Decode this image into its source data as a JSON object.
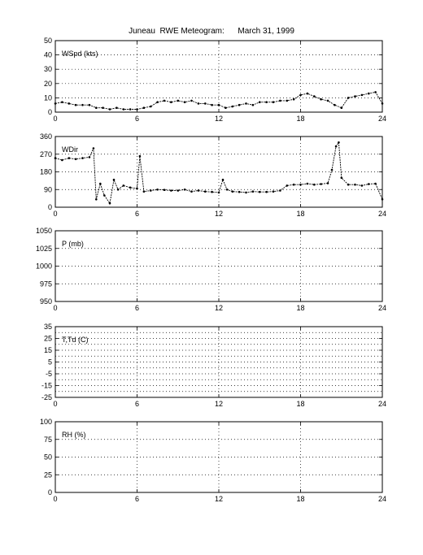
{
  "title": "Juneau  RWE Meteogram:      March 31, 1999",
  "chart_data": [
    {
      "type": "scatter",
      "label": "WSpd (kts)",
      "xlim": [
        0,
        24
      ],
      "xticks": [
        "0",
        "6",
        "12",
        "18",
        "24"
      ],
      "ylim": [
        0,
        50
      ],
      "yticks": [
        "0",
        "10",
        "20",
        "30",
        "40",
        "50"
      ],
      "grid": true,
      "series": [
        {
          "x": [
            0,
            0.5,
            1,
            1.5,
            2,
            2.5,
            3,
            3.5,
            4,
            4.5,
            5,
            5.5,
            6,
            6.5,
            7,
            7.5,
            8,
            8.5,
            9,
            9.5,
            10,
            10.5,
            11,
            11.5,
            12,
            12.5,
            13,
            13.5,
            14,
            14.5,
            15,
            15.5,
            16,
            16.5,
            17,
            17.5,
            18,
            18.5,
            19,
            19.5,
            20,
            20.5,
            21,
            21.5,
            22,
            22.5,
            23,
            23.5,
            24
          ],
          "y": [
            6,
            7,
            6,
            5,
            5,
            5,
            3,
            3,
            2,
            3,
            2,
            2,
            2,
            3,
            4,
            7,
            8,
            7,
            8,
            7,
            8,
            6,
            6,
            5,
            5,
            3,
            4,
            5,
            6,
            5,
            7,
            7,
            7,
            8,
            8,
            9,
            12,
            13,
            11,
            9,
            8,
            5,
            3,
            10,
            11,
            12,
            13,
            14,
            6
          ]
        }
      ]
    },
    {
      "type": "scatter",
      "label": "WDir",
      "xlim": [
        0,
        24
      ],
      "xticks": [
        "0",
        "6",
        "12",
        "18",
        "24"
      ],
      "ylim": [
        0,
        360
      ],
      "yticks": [
        "0",
        "90",
        "180",
        "270",
        "360"
      ],
      "grid": true,
      "series": [
        {
          "x": [
            0,
            0.5,
            1,
            1.5,
            2,
            2.5,
            2.8,
            3,
            3.3,
            3.6,
            4,
            4.3,
            4.6,
            5,
            5.5,
            6,
            6.2,
            6.5,
            7,
            7.5,
            8,
            8.5,
            9,
            9.5,
            10,
            10.5,
            11,
            11.5,
            12,
            12.3,
            12.6,
            13,
            13.5,
            14,
            14.5,
            15,
            15.5,
            16,
            16.5,
            17,
            17.5,
            18,
            18.5,
            19,
            19.5,
            20,
            20.3,
            20.6,
            20.8,
            21,
            21.5,
            22,
            22.5,
            23,
            23.5,
            24
          ],
          "y": [
            250,
            240,
            250,
            245,
            250,
            255,
            300,
            40,
            120,
            60,
            20,
            140,
            90,
            110,
            100,
            95,
            260,
            80,
            85,
            90,
            88,
            85,
            85,
            90,
            80,
            85,
            80,
            78,
            75,
            140,
            90,
            80,
            78,
            75,
            80,
            78,
            78,
            80,
            85,
            110,
            115,
            115,
            120,
            115,
            118,
            122,
            190,
            310,
            330,
            150,
            115,
            115,
            110,
            118,
            120,
            40
          ]
        }
      ]
    },
    {
      "type": "scatter",
      "label": "P (mb)",
      "xlim": [
        0,
        24
      ],
      "xticks": [
        "0",
        "6",
        "12",
        "18",
        "24"
      ],
      "ylim": [
        950,
        1050
      ],
      "yticks": [
        "950",
        "975",
        "1000",
        "1025",
        "1050"
      ],
      "grid": true,
      "series": []
    },
    {
      "type": "scatter",
      "label": "T,Td (C)",
      "xlim": [
        0,
        24
      ],
      "xticks": [
        "0",
        "6",
        "12",
        "18",
        "24"
      ],
      "ylim": [
        -25,
        35
      ],
      "yticks": [
        "-25",
        "-15",
        "-5",
        "5",
        "15",
        "25",
        "35"
      ],
      "extra_yticks": [
        "-20",
        "-10",
        "0",
        "10",
        "20",
        "30"
      ],
      "grid": true,
      "series": []
    },
    {
      "type": "scatter",
      "label": "RH (%)",
      "xlim": [
        0,
        24
      ],
      "xticks": [
        "0",
        "6",
        "12",
        "18",
        "24"
      ],
      "ylim": [
        0,
        100
      ],
      "yticks": [
        "0",
        "25",
        "50",
        "75",
        "100"
      ],
      "grid": true,
      "series": []
    }
  ]
}
